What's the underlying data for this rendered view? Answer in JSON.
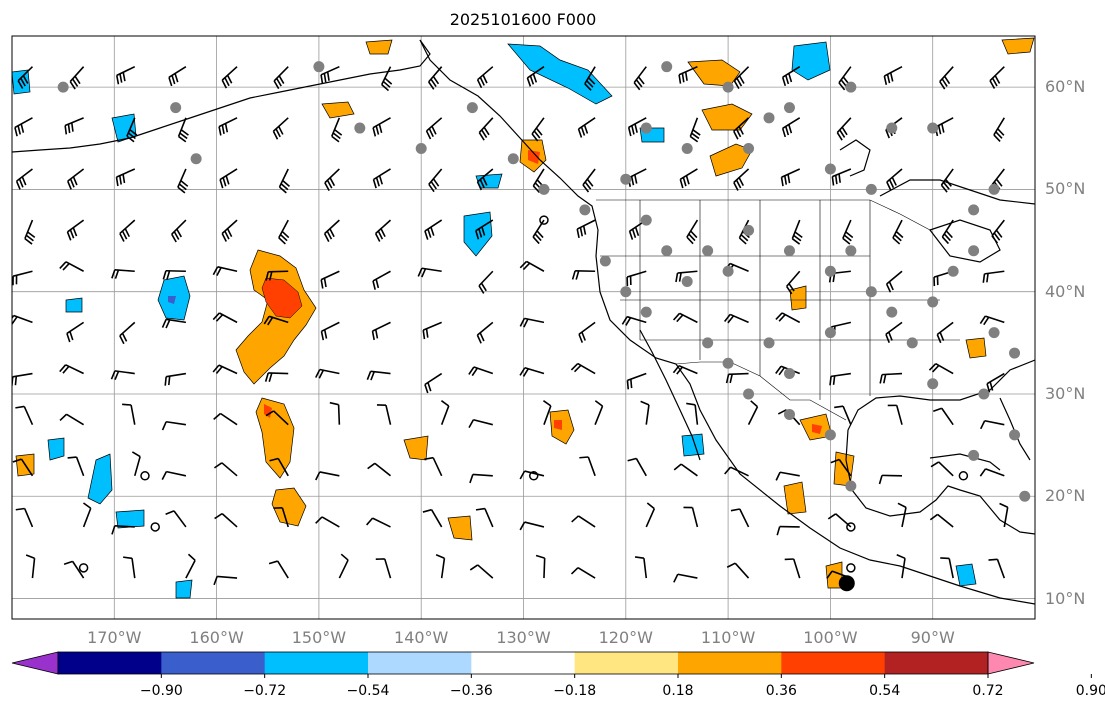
{
  "title": "2025101600 F000",
  "map": {
    "lon_range": [
      -180,
      -80
    ],
    "lat_range": [
      8,
      65
    ],
    "lat_labels": [
      {
        "lat": 60,
        "text": "60°N"
      },
      {
        "lat": 50,
        "text": "50°N"
      },
      {
        "lat": 40,
        "text": "40°N"
      },
      {
        "lat": 30,
        "text": "30°N"
      },
      {
        "lat": 20,
        "text": "20°N"
      },
      {
        "lat": 10,
        "text": "10°N"
      }
    ],
    "lon_labels": [
      {
        "lon": -170,
        "text": "170°W"
      },
      {
        "lon": -160,
        "text": "160°W"
      },
      {
        "lon": -150,
        "text": "150°W"
      },
      {
        "lon": -140,
        "text": "140°W"
      },
      {
        "lon": -130,
        "text": "130°W"
      },
      {
        "lon": -120,
        "text": "120°W"
      },
      {
        "lon": -110,
        "text": "110°W"
      },
      {
        "lon": -100,
        "text": "100°W"
      },
      {
        "lon": -90,
        "text": "90°W"
      }
    ],
    "grid": true,
    "colors": {
      "land_outline": "#000000",
      "grid": "#999999",
      "station": "#808080",
      "positive_shades": [
        "#ffe680",
        "#ffa500",
        "#ff4000",
        "#b22222"
      ],
      "negative_shades": [
        "#add8ff",
        "#00bfff",
        "#3a5fcd",
        "#00008b"
      ]
    }
  },
  "colorbar": {
    "ticks": [
      "−0.90",
      "−0.72",
      "−0.54",
      "−0.36",
      "−0.18",
      "0.18",
      "0.36",
      "0.54",
      "0.72",
      "0.90"
    ],
    "bins": [
      "#9932cc",
      "#00008b",
      "#3a5fcd",
      "#00bfff",
      "#add8ff",
      "#ffffff",
      "#ffe680",
      "#ffa500",
      "#ff4000",
      "#b22222",
      "#ff88b0"
    ]
  }
}
